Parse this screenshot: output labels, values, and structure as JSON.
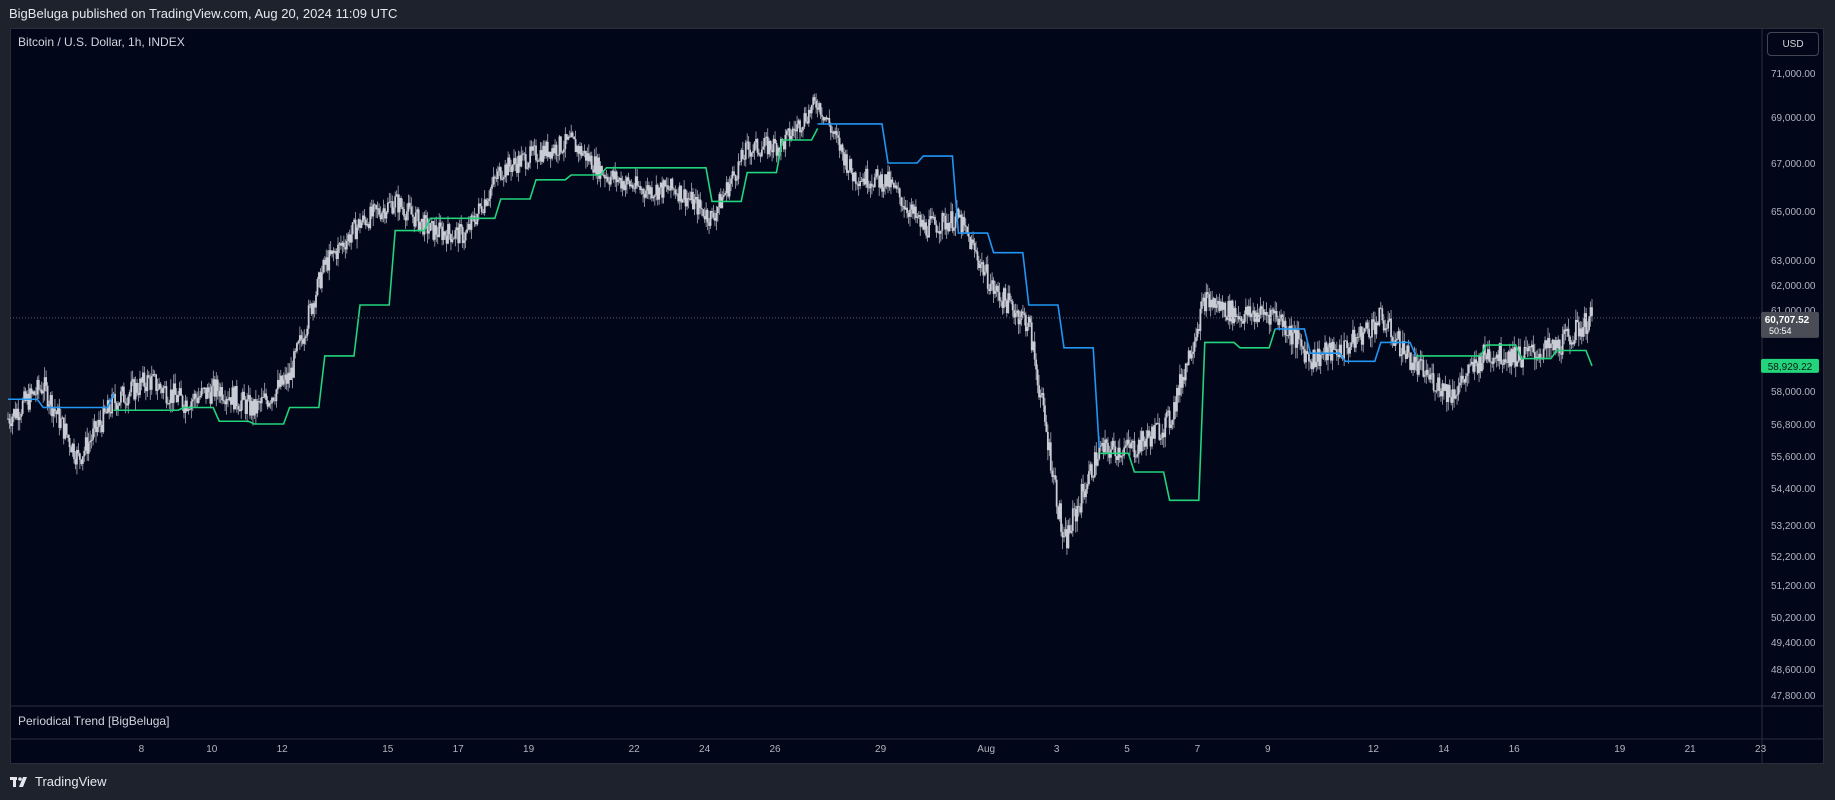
{
  "header": {
    "published_text": "BigBeluga published on TradingView.com, Aug 20, 2024 11:09 UTC"
  },
  "chart_header": {
    "symbol_text": "Bitcoin / U.S. Dollar, 1h, INDEX"
  },
  "indicator": {
    "name": "Periodical Trend [BigBeluga]"
  },
  "toolbar": {
    "currency_label": "USD"
  },
  "footer": {
    "brand": "TradingView"
  },
  "colors": {
    "background": "#020619",
    "candles": "#c9ccd4",
    "trend_up": "#22d47b",
    "trend_down": "#2196f3",
    "price_label_bg": "#4a4d56",
    "trend_label_bg": "#22d47b"
  },
  "chart_data": {
    "type": "line",
    "x_ticks": [
      "8",
      "10",
      "12",
      "15",
      "17",
      "19",
      "22",
      "24",
      "26",
      "29",
      "Aug",
      "3",
      "5",
      "7",
      "9",
      "12",
      "14",
      "16",
      "19",
      "21",
      "23"
    ],
    "y_ticks": [
      "71,000.00",
      "69,000.00",
      "67,000.00",
      "65,000.00",
      "63,000.00",
      "62,000.00",
      "61,000.00",
      "58,000.00",
      "56,800.00",
      "55,600.00",
      "54,400.00",
      "53,200.00",
      "52,200.00",
      "51,200.00",
      "50,200.00",
      "49,400.00",
      "48,600.00",
      "47,800.00"
    ],
    "last_price": "60,707.52",
    "countdown": "50:54",
    "trend_value": "58,929.22",
    "price_series": [
      [
        "Jul 6",
        57000
      ],
      [
        "Jul 7",
        58200
      ],
      [
        "Jul 8",
        55500
      ],
      [
        "Jul 9",
        57600
      ],
      [
        "Jul 10",
        58400
      ],
      [
        "Jul 11",
        57600
      ],
      [
        "Jul 12",
        58100
      ],
      [
        "Jul 13",
        57300
      ],
      [
        "Jul 14",
        58500
      ],
      [
        "Jul 15",
        62800
      ],
      [
        "Jul 16",
        64500
      ],
      [
        "Jul 17",
        65400
      ],
      [
        "Jul 18",
        64200
      ],
      [
        "Jul 19",
        64000
      ],
      [
        "Jul 20",
        66700
      ],
      [
        "Jul 21",
        67400
      ],
      [
        "Jul 22",
        67900
      ],
      [
        "Jul 23",
        66500
      ],
      [
        "Jul 24",
        65900
      ],
      [
        "Jul 25",
        65900
      ],
      [
        "Jul 26",
        64700
      ],
      [
        "Jul 27",
        67600
      ],
      [
        "Jul 28",
        67800
      ],
      [
        "Jul 29",
        69700
      ],
      [
        "Jul 30",
        66500
      ],
      [
        "Jul 31",
        66200
      ],
      [
        "Aug 1",
        64300
      ],
      [
        "Aug 2",
        64700
      ],
      [
        "Aug 3",
        61800
      ],
      [
        "Aug 4",
        60500
      ],
      [
        "Aug 5",
        52500
      ],
      [
        "Aug 6",
        55800
      ],
      [
        "Aug 7",
        55900
      ],
      [
        "Aug 8",
        56900
      ],
      [
        "Aug 9",
        61400
      ],
      [
        "Aug 10",
        60800
      ],
      [
        "Aug 11",
        60900
      ],
      [
        "Aug 12",
        59200
      ],
      [
        "Aug 13",
        59600
      ],
      [
        "Aug 14",
        60700
      ],
      [
        "Aug 15",
        58900
      ],
      [
        "Aug 16",
        57900
      ],
      [
        "Aug 17",
        59400
      ],
      [
        "Aug 18",
        59300
      ],
      [
        "Aug 19",
        59600
      ],
      [
        "Aug 20",
        60707
      ]
    ],
    "trend_series": [
      {
        "name": "",
        "color": "#2196f3",
        "points": [
          [
            "Jul 6",
            57700
          ],
          [
            "Jul 7",
            57400
          ],
          [
            "Jul 8",
            57400
          ],
          [
            "Jul 9",
            57900
          ]
        ]
      },
      {
        "name": "",
        "color": "#22d47b",
        "points": [
          [
            "Jul 9",
            57300
          ],
          [
            "Jul 11",
            57400
          ],
          [
            "Jul 12",
            56900
          ],
          [
            "Jul 13",
            56800
          ],
          [
            "Jul 14",
            57400
          ],
          [
            "Jul 15",
            59300
          ],
          [
            "Jul 16",
            61200
          ],
          [
            "Jul 17",
            64200
          ],
          [
            "Jul 18",
            64700
          ],
          [
            "Jul 20",
            65500
          ],
          [
            "Jul 21",
            66300
          ],
          [
            "Jul 22",
            66500
          ],
          [
            "Jul 23",
            66800
          ],
          [
            "Jul 26",
            65400
          ],
          [
            "Jul 27",
            66600
          ],
          [
            "Jul 28",
            68000
          ],
          [
            "Jul 29",
            68500
          ]
        ]
      },
      {
        "name": "",
        "color": "#2196f3",
        "points": [
          [
            "Jul 29",
            68700
          ],
          [
            "Jul 31",
            67000
          ],
          [
            "Aug 1",
            67300
          ],
          [
            "Aug 2",
            64100
          ],
          [
            "Aug 3",
            63300
          ],
          [
            "Aug 4",
            61200
          ],
          [
            "Aug 5",
            59600
          ],
          [
            "Aug 6",
            55900
          ]
        ]
      },
      {
        "name": "",
        "color": "#22d47b",
        "points": [
          [
            "Aug 6",
            55700
          ],
          [
            "Aug 7",
            55000
          ],
          [
            "Aug 8",
            54000
          ],
          [
            "Aug 9",
            59800
          ],
          [
            "Aug 10",
            59600
          ],
          [
            "Aug 11",
            60300
          ]
        ]
      },
      {
        "name": "",
        "color": "#2196f3",
        "points": [
          [
            "Aug 11",
            60300
          ],
          [
            "Aug 12",
            59400
          ],
          [
            "Aug 13",
            59100
          ],
          [
            "Aug 14",
            59800
          ],
          [
            "Aug 15",
            59300
          ]
        ]
      },
      {
        "name": "",
        "color": "#22d47b",
        "points": [
          [
            "Aug 15",
            59300
          ],
          [
            "Aug 16",
            59300
          ],
          [
            "Aug 17",
            59700
          ],
          [
            "Aug 18",
            59200
          ],
          [
            "Aug 19",
            59500
          ],
          [
            "Aug 20",
            58930
          ]
        ]
      }
    ]
  }
}
